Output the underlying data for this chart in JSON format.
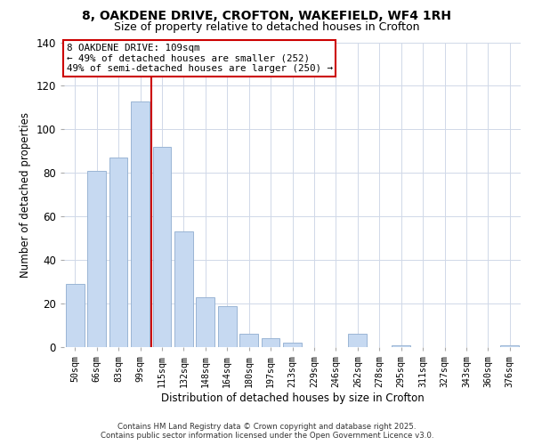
{
  "title": "8, OAKDENE DRIVE, CROFTON, WAKEFIELD, WF4 1RH",
  "subtitle": "Size of property relative to detached houses in Crofton",
  "xlabel": "Distribution of detached houses by size in Crofton",
  "ylabel": "Number of detached properties",
  "bar_labels": [
    "50sqm",
    "66sqm",
    "83sqm",
    "99sqm",
    "115sqm",
    "132sqm",
    "148sqm",
    "164sqm",
    "180sqm",
    "197sqm",
    "213sqm",
    "229sqm",
    "246sqm",
    "262sqm",
    "278sqm",
    "295sqm",
    "311sqm",
    "327sqm",
    "343sqm",
    "360sqm",
    "376sqm"
  ],
  "bar_values": [
    29,
    81,
    87,
    113,
    92,
    53,
    23,
    19,
    6,
    4,
    2,
    0,
    0,
    6,
    0,
    1,
    0,
    0,
    0,
    0,
    1
  ],
  "bar_color": "#c6d9f1",
  "bar_edge_color": "#9ab5d4",
  "vline_color": "#cc0000",
  "vline_x_index": 4,
  "ylim": [
    0,
    140
  ],
  "yticks": [
    0,
    20,
    40,
    60,
    80,
    100,
    120,
    140
  ],
  "annotation_title": "8 OAKDENE DRIVE: 109sqm",
  "annotation_line1": "← 49% of detached houses are smaller (252)",
  "annotation_line2": "49% of semi-detached houses are larger (250) →",
  "footer_line1": "Contains HM Land Registry data © Crown copyright and database right 2025.",
  "footer_line2": "Contains public sector information licensed under the Open Government Licence v3.0.",
  "background_color": "#ffffff",
  "grid_color": "#d0d8e8"
}
